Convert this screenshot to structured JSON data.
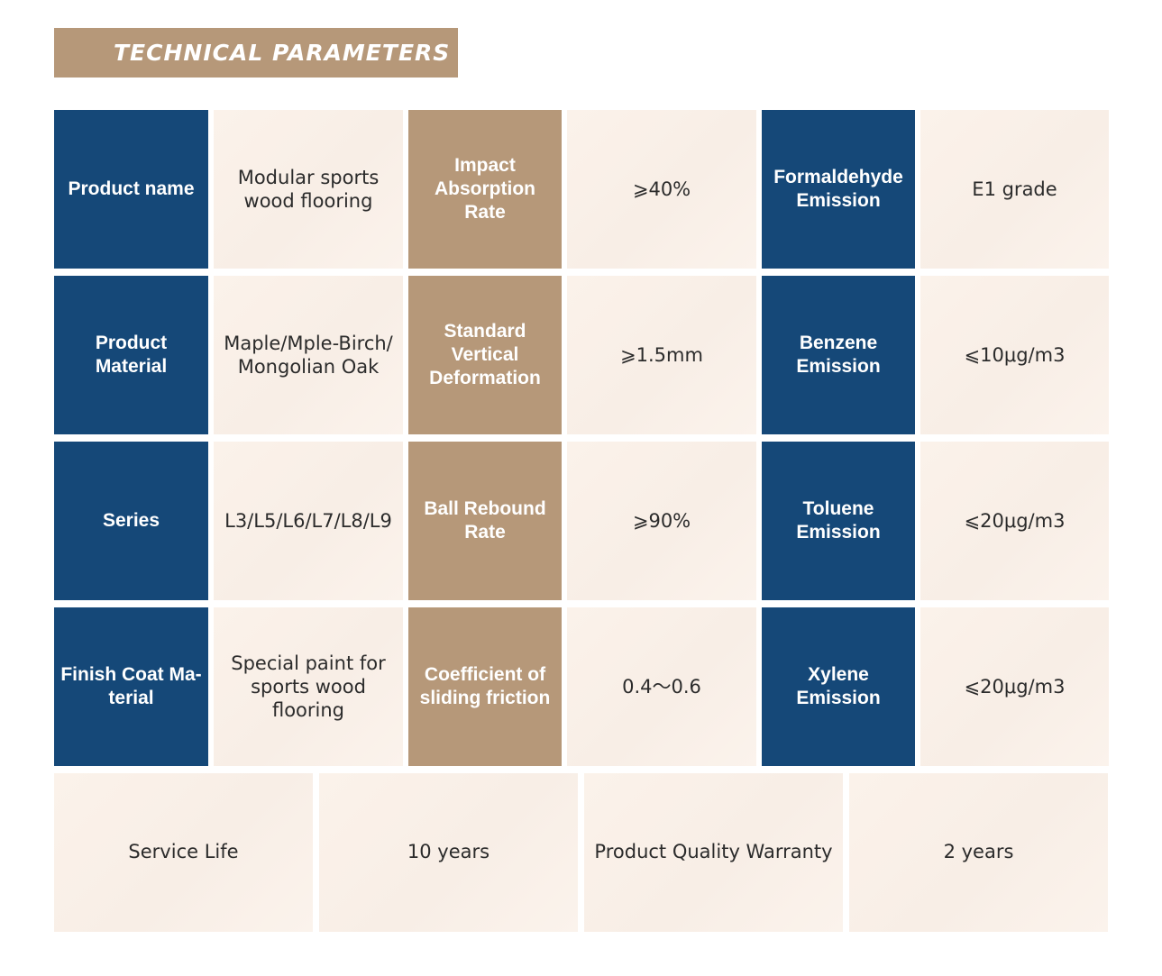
{
  "header": {
    "title": "TECHNICAL PARAMETERS"
  },
  "colors": {
    "navy": "#154878",
    "tan": "#b69879",
    "cream": "#f9efe7"
  },
  "rows": [
    {
      "label1": "Product name",
      "value1": "Modular sports wood flooring",
      "label2": "Impact Absorption Rate",
      "value2": "⩾40%",
      "label3": "Formaldehyde Emission",
      "value3": "E1 grade"
    },
    {
      "label1": "Product Material",
      "value1": "Maple/Mple-Birch/ Mongolian Oak",
      "label2": "Standard Vertical Deformation",
      "value2": "⩾1.5mm",
      "label3": "Benzene Emission",
      "value3": "⩽10μg/m3"
    },
    {
      "label1": "Series",
      "value1": "L3/L5/L6/L7/L8/L9",
      "label2": "Ball Rebound Rate",
      "value2": "⩾90%",
      "label3": "Toluene Emission",
      "value3": "⩽20μg/m3"
    },
    {
      "label1": "Finish Coat Ma-terial",
      "value1": "Special paint for sports wood flooring",
      "label2": "Coefficient of sliding friction",
      "value2": "0.4～0.6",
      "label3": "Xylene Emission",
      "value3": "⩽20μg/m3"
    }
  ],
  "bottom": {
    "service_life_label": "Service Life",
    "service_life_value": "10 years",
    "warranty_label": "Product Quality Warranty",
    "warranty_value": "2 years"
  }
}
